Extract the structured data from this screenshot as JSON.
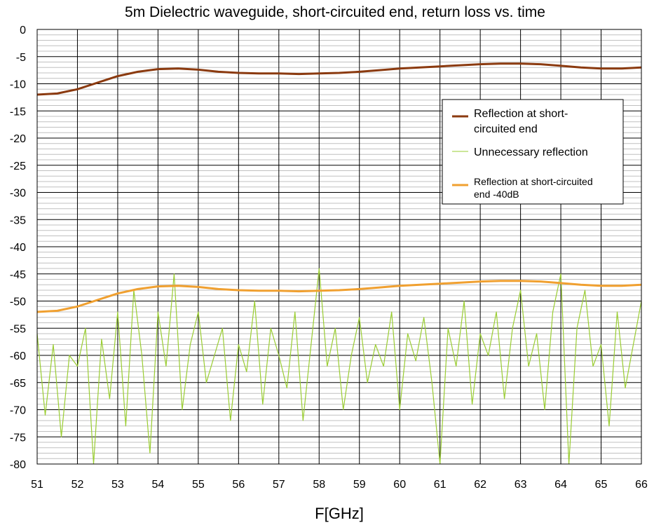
{
  "chart_data": {
    "type": "line",
    "title": "5m Dielectric waveguide, short-circuited end, return loss vs. time",
    "xlabel": "F[GHz]",
    "ylabel": "",
    "xlim": [
      51,
      66
    ],
    "ylim": [
      -80,
      0
    ],
    "x_ticks": [
      "51",
      "52",
      "53",
      "54",
      "55",
      "56",
      "57",
      "58",
      "59",
      "60",
      "61",
      "62",
      "63",
      "64",
      "65",
      "66"
    ],
    "y_ticks": [
      "0",
      "-5",
      "-10",
      "-15",
      "-20",
      "-25",
      "-30",
      "-35",
      "-40",
      "-45",
      "-50",
      "-55",
      "-60",
      "-65",
      "-70",
      "-75",
      "-80"
    ],
    "grid": true,
    "legend_position": "upper-right",
    "series": [
      {
        "name": "Reflection at short-circuited end",
        "color": "#8B3A0F",
        "x": [
          51,
          51.5,
          52,
          52.5,
          53,
          53.5,
          54,
          54.5,
          55,
          55.5,
          56,
          56.5,
          57,
          57.5,
          58,
          58.5,
          59,
          59.5,
          60,
          60.5,
          61,
          61.5,
          62,
          62.5,
          63,
          63.5,
          64,
          64.5,
          65,
          65.5,
          66
        ],
        "y": [
          -12.0,
          -11.8,
          -11.0,
          -9.8,
          -8.6,
          -7.8,
          -7.3,
          -7.2,
          -7.4,
          -7.8,
          -8.0,
          -8.1,
          -8.1,
          -8.2,
          -8.1,
          -8.0,
          -7.8,
          -7.5,
          -7.2,
          -7.0,
          -6.8,
          -6.6,
          -6.4,
          -6.3,
          -6.3,
          -6.4,
          -6.7,
          -7.0,
          -7.2,
          -7.2,
          -7.0
        ]
      },
      {
        "name": "Unnecessary reflection",
        "color": "#9ACD32",
        "x": [
          51,
          51.2,
          51.4,
          51.6,
          51.8,
          52,
          52.2,
          52.4,
          52.6,
          52.8,
          53,
          53.2,
          53.4,
          53.6,
          53.8,
          54,
          54.2,
          54.4,
          54.6,
          54.8,
          55,
          55.2,
          55.4,
          55.6,
          55.8,
          56,
          56.2,
          56.4,
          56.6,
          56.8,
          57,
          57.2,
          57.4,
          57.6,
          57.8,
          58,
          58.2,
          58.4,
          58.6,
          58.8,
          59,
          59.2,
          59.4,
          59.6,
          59.8,
          60,
          60.2,
          60.4,
          60.6,
          60.8,
          61,
          61.2,
          61.4,
          61.6,
          61.8,
          62,
          62.2,
          62.4,
          62.6,
          62.8,
          63,
          63.2,
          63.4,
          63.6,
          63.8,
          64,
          64.2,
          64.4,
          64.6,
          64.8,
          65,
          65.2,
          65.4,
          65.6,
          65.8,
          66
        ],
        "y": [
          -56,
          -71,
          -58,
          -75,
          -60,
          -62,
          -55,
          -80,
          -57,
          -68,
          -52,
          -73,
          -48,
          -60,
          -78,
          -52,
          -62,
          -45,
          -70,
          -58,
          -52,
          -65,
          -60,
          -55,
          -72,
          -58,
          -63,
          -50,
          -69,
          -55,
          -60,
          -66,
          -52,
          -72,
          -58,
          -44,
          -62,
          -55,
          -70,
          -60,
          -53,
          -65,
          -58,
          -62,
          -52,
          -70,
          -56,
          -61,
          -53,
          -65,
          -80,
          -55,
          -62,
          -50,
          -69,
          -56,
          -60,
          -52,
          -68,
          -55,
          -48,
          -62,
          -56,
          -70,
          -52,
          -45,
          -80,
          -55,
          -48,
          -62,
          -58,
          -73,
          -52,
          -66,
          -58,
          -50
        ]
      },
      {
        "name": "Reflection at short-circuited end -40dB",
        "color": "#F0A030",
        "x": [
          51,
          51.5,
          52,
          52.5,
          53,
          53.5,
          54,
          54.5,
          55,
          55.5,
          56,
          56.5,
          57,
          57.5,
          58,
          58.5,
          59,
          59.5,
          60,
          60.5,
          61,
          61.5,
          62,
          62.5,
          63,
          63.5,
          64,
          64.5,
          65,
          65.5,
          66
        ],
        "y": [
          -52.0,
          -51.8,
          -51.0,
          -49.8,
          -48.6,
          -47.8,
          -47.3,
          -47.2,
          -47.4,
          -47.8,
          -48.0,
          -48.1,
          -48.1,
          -48.2,
          -48.1,
          -48.0,
          -47.8,
          -47.5,
          -47.2,
          -47.0,
          -46.8,
          -46.6,
          -46.4,
          -46.3,
          -46.3,
          -46.4,
          -46.7,
          -47.0,
          -47.2,
          -47.2,
          -47.0
        ]
      }
    ]
  },
  "legend": {
    "item1_line1": "Reflection at short-",
    "item1_line2": "circuited end",
    "item2": "Unnecessary reflection",
    "item3_line1": "Reflection at short-circuited",
    "item3_line2": "end -40dB"
  }
}
